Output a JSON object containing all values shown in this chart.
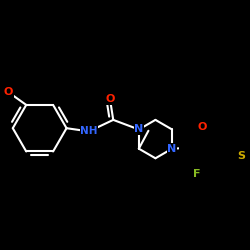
{
  "background_color": "#000000",
  "bond_color": "#ffffff",
  "atom_colors": {
    "O": "#ff2200",
    "N": "#3366ff",
    "F": "#88bb22",
    "S": "#ccaa00"
  },
  "bond_lw": 1.5,
  "font_size": 8.0,
  "fig_size": [
    2.5,
    2.5
  ],
  "dpi": 100
}
